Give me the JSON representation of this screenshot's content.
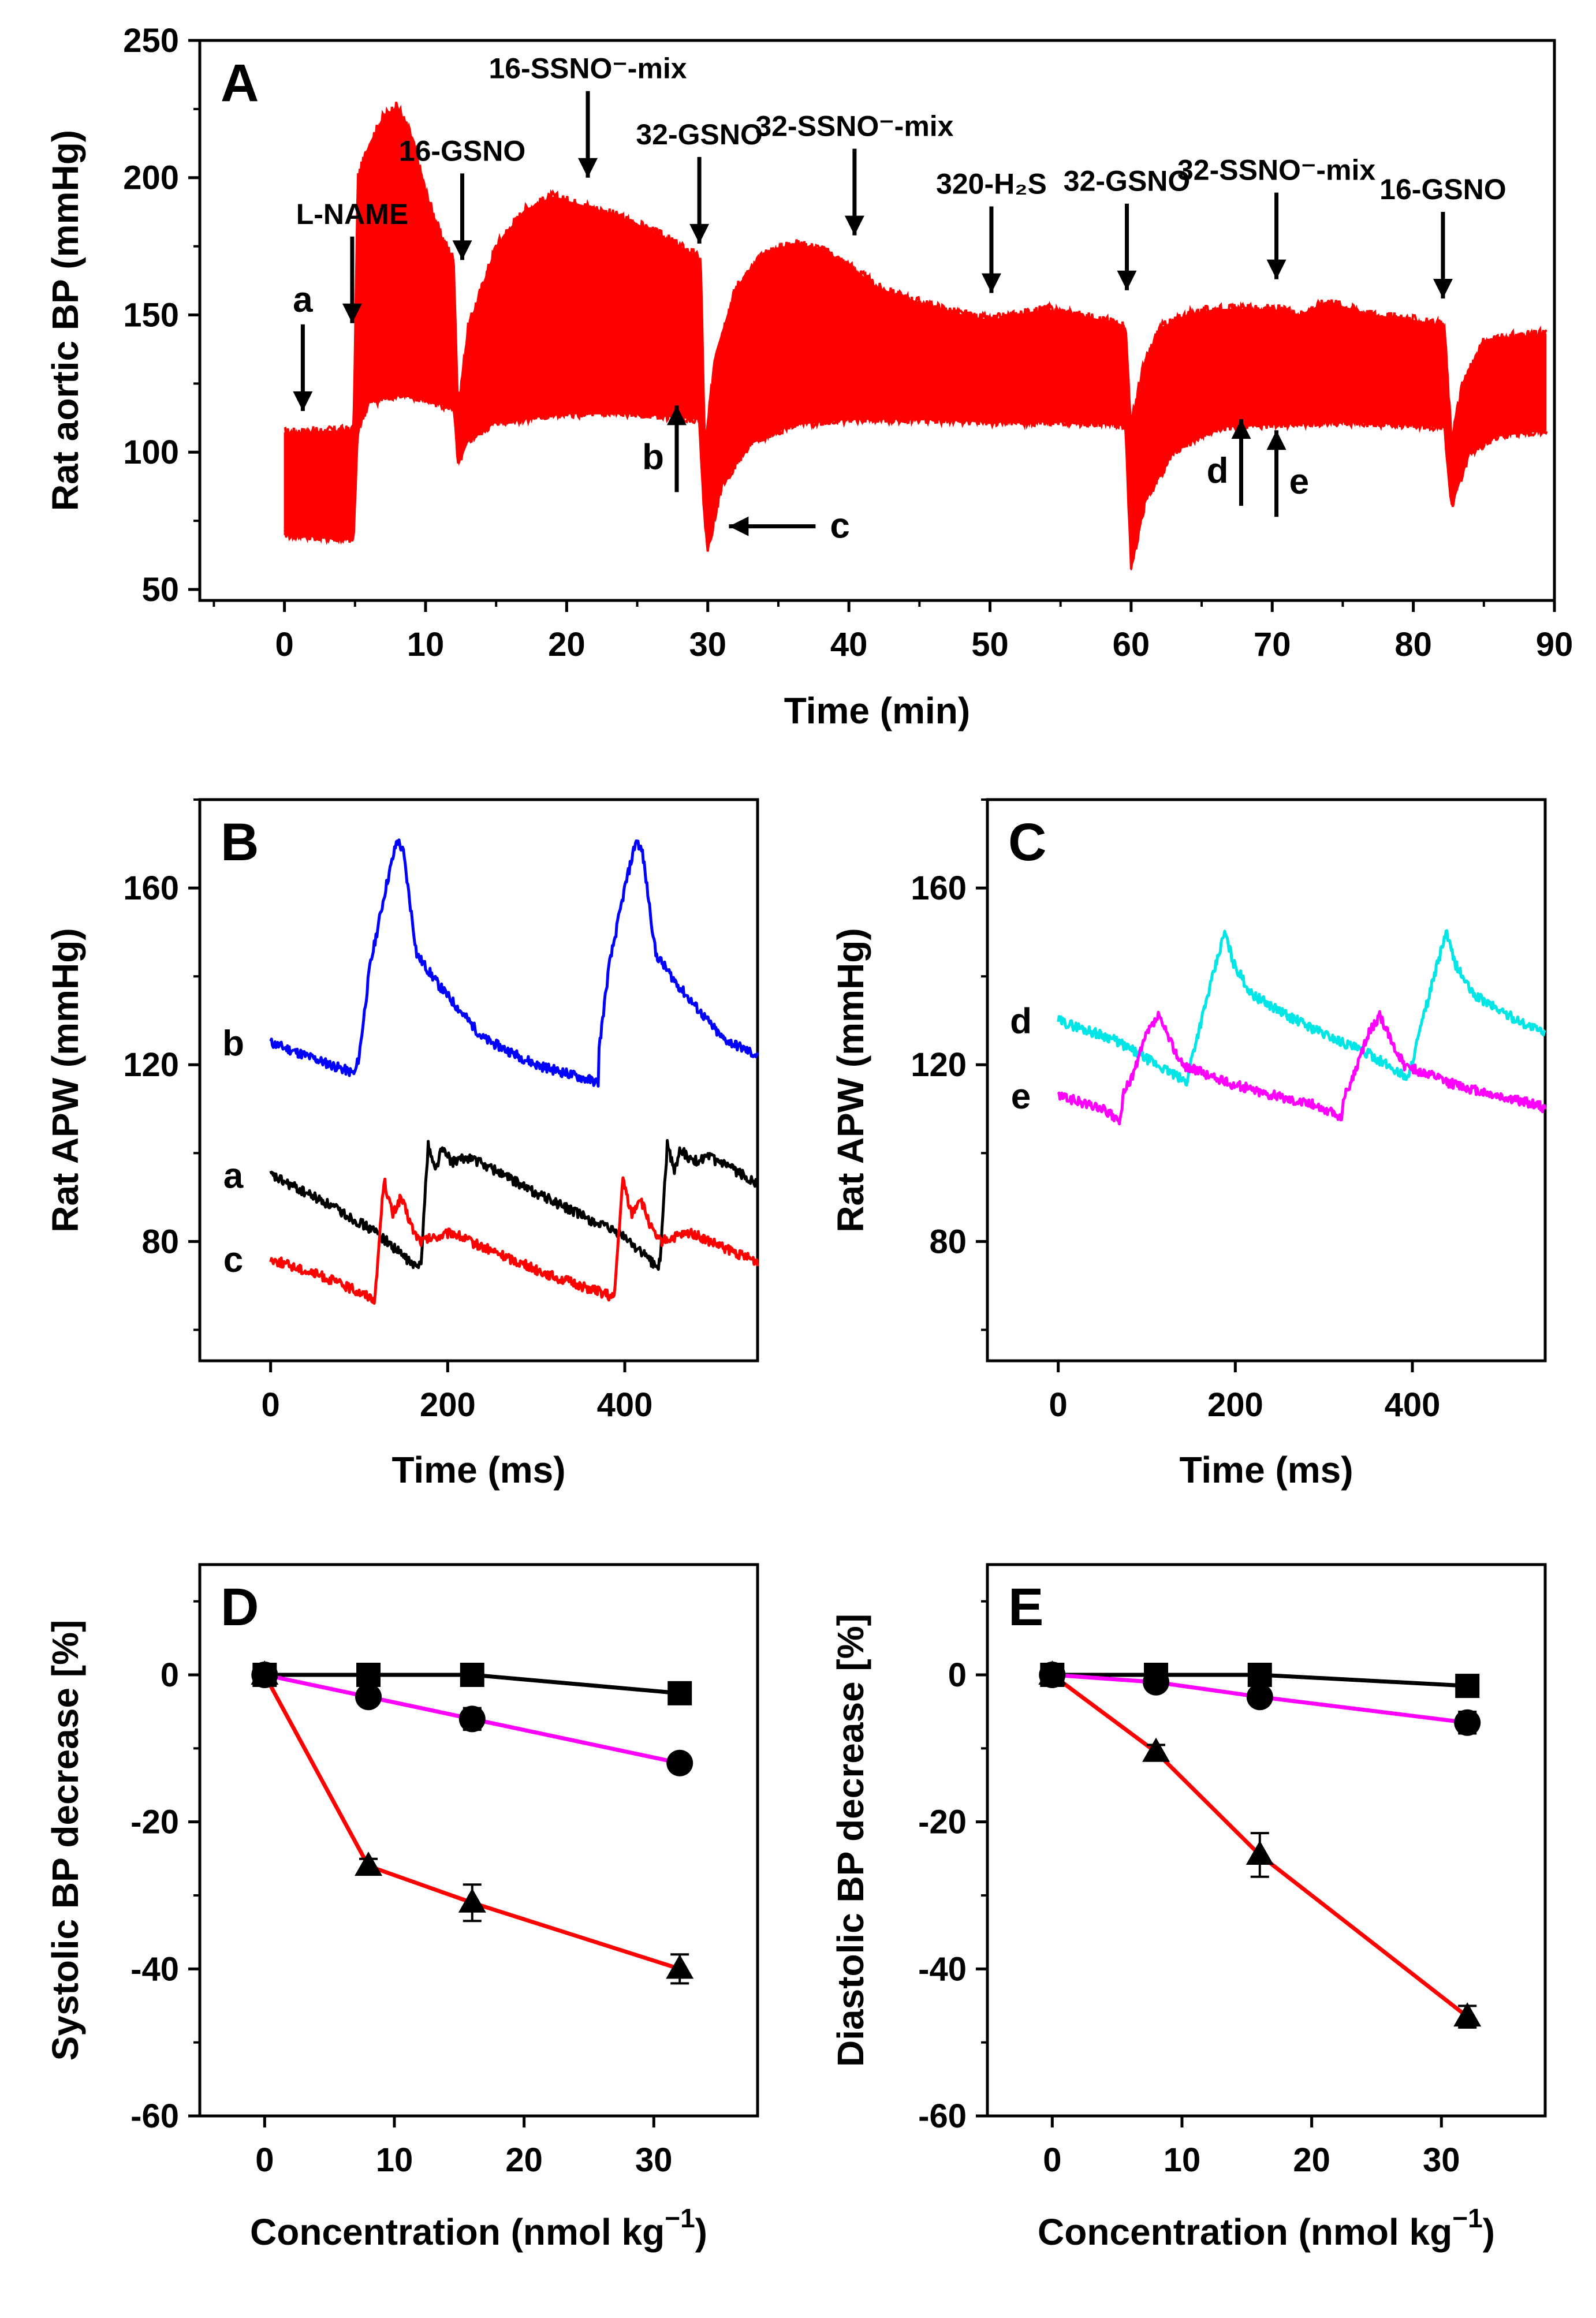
{
  "chart_data": [
    {
      "id": "A",
      "panel_label": "A",
      "type": "line",
      "xlabel": "Time (min)",
      "ylabel": "Rat aortic BP (mmHg)",
      "xlim": [
        -6,
        90
      ],
      "ylim": [
        46,
        250
      ],
      "xticks": [
        0,
        10,
        20,
        30,
        40,
        50,
        60,
        70,
        80,
        90
      ],
      "yticks": [
        50,
        100,
        150,
        200,
        250
      ],
      "color": "#ff0000",
      "series": [
        {
          "name": "systolic",
          "x": [
            0,
            4.9,
            5.2,
            6,
            7,
            8,
            9,
            10,
            11,
            12,
            12.3,
            13,
            15,
            17,
            19,
            21,
            23,
            25,
            27,
            29,
            29.5,
            29.8,
            30.5,
            32,
            34,
            36,
            38,
            40,
            42,
            44,
            46,
            48,
            50,
            52,
            54,
            56,
            58,
            59.6,
            60,
            60.8,
            62,
            64,
            66,
            68,
            70,
            72,
            74,
            75,
            77,
            80,
            82.2,
            82.7,
            83.5,
            85,
            87,
            89.5
          ],
          "y": [
            107,
            108,
            200,
            212,
            222,
            226,
            215,
            195,
            180,
            170,
            115,
            145,
            175,
            188,
            193,
            190,
            187,
            183,
            178,
            172,
            170,
            100,
            135,
            160,
            172,
            176,
            174,
            168,
            160,
            156,
            153,
            150,
            148,
            150,
            152,
            150,
            148,
            146,
            110,
            130,
            145,
            150,
            152,
            152,
            152,
            150,
            155,
            153,
            150,
            148,
            146,
            105,
            125,
            140,
            142,
            143
          ]
        },
        {
          "name": "diastolic",
          "x": [
            0,
            4.9,
            5.2,
            6,
            8,
            10,
            12,
            12.3,
            13,
            15,
            20,
            25,
            29.4,
            29.7,
            30,
            31,
            33,
            36,
            40,
            45,
            50,
            55,
            59.6,
            60,
            61,
            63,
            66,
            70,
            75,
            80,
            82.2,
            82.7,
            84,
            86,
            89.5
          ],
          "y": [
            70,
            68,
            108,
            118,
            121,
            119,
            116,
            95,
            104,
            111,
            114,
            114,
            112,
            80,
            64,
            88,
            103,
            110,
            112,
            112,
            111,
            111,
            110,
            57,
            82,
            100,
            109,
            110,
            111,
            110,
            109,
            80,
            100,
            106,
            108
          ]
        }
      ],
      "annotations": [
        {
          "text": "a",
          "x": 1.3,
          "y_tip": 115,
          "direction": "down"
        },
        {
          "text": "L-NAME",
          "x": 4.8,
          "y_tip": 147,
          "direction": "down"
        },
        {
          "text": "16-GSNO",
          "x": 12.6,
          "y_tip": 170,
          "direction": "down"
        },
        {
          "text": "16-SSNO⁻-mix",
          "x": 21.5,
          "y_tip": 200,
          "direction": "down"
        },
        {
          "text": "32-GSNO",
          "x": 29.4,
          "y_tip": 176,
          "direction": "down"
        },
        {
          "text": "32-SSNO⁻-mix",
          "x": 40.4,
          "y_tip": 179,
          "direction": "down"
        },
        {
          "text": "320-H₂S",
          "x": 50.1,
          "y_tip": 158,
          "direction": "down"
        },
        {
          "text": "32-GSNO",
          "x": 59.7,
          "y_tip": 159,
          "direction": "down"
        },
        {
          "text": "32-SSNO⁻-mix",
          "x": 70.3,
          "y_tip": 163,
          "direction": "down"
        },
        {
          "text": "16-GSNO",
          "x": 82.1,
          "y_tip": 156,
          "direction": "down"
        },
        {
          "text": "b",
          "x": 27.8,
          "y_tip": 117,
          "direction": "up"
        },
        {
          "text": "c",
          "x": 31.5,
          "y_tip": 73,
          "direction": "left"
        },
        {
          "text": "d",
          "x": 67.8,
          "y_tip": 112,
          "direction": "up"
        },
        {
          "text": "e",
          "x": 70.3,
          "y_tip": 108,
          "direction": "up"
        }
      ]
    },
    {
      "id": "B",
      "panel_label": "B",
      "type": "line",
      "xlabel": "Time (ms)",
      "ylabel": "Rat APW (mmHg)",
      "xlim": [
        -80,
        550
      ],
      "ylim": [
        53,
        180
      ],
      "xticks": [
        0,
        200,
        400
      ],
      "yticks": [
        80,
        120,
        160
      ],
      "period_ms": 270,
      "series": [
        {
          "name": "b",
          "label": "b",
          "color": "#0000ff",
          "points": [
            [
              0,
              125
            ],
            [
              95,
              118
            ],
            [
              100,
              122
            ],
            [
              112,
              142
            ],
            [
              130,
              160
            ],
            [
              143,
              171
            ],
            [
              150,
              168
            ],
            [
              165,
              145
            ],
            [
              190,
              138
            ],
            [
              240,
              126
            ],
            [
              300,
              120
            ],
            [
              370,
              116
            ]
          ]
        },
        {
          "name": "a",
          "label": "a",
          "color": "#000000",
          "points": [
            [
              0,
              95
            ],
            [
              60,
              89
            ],
            [
              120,
              82
            ],
            [
              165,
              74
            ],
            [
              170,
              76
            ],
            [
              178,
              102
            ],
            [
              186,
              96
            ],
            [
              193,
              101
            ],
            [
              205,
              98
            ],
            [
              225,
              99
            ],
            [
              255,
              96
            ],
            [
              290,
              92
            ],
            [
              340,
              87
            ],
            [
              400,
              81
            ],
            [
              438,
              74
            ]
          ]
        },
        {
          "name": "c",
          "label": "c",
          "color": "#ff0000",
          "points": [
            [
              0,
              76
            ],
            [
              60,
              72
            ],
            [
              118,
              67
            ],
            [
              124,
              84
            ],
            [
              128,
              94
            ],
            [
              138,
              86
            ],
            [
              147,
              90
            ],
            [
              162,
              82
            ],
            [
              170,
              80
            ],
            [
              205,
              82
            ],
            [
              225,
              80
            ],
            [
              260,
              77
            ],
            [
              320,
              72
            ],
            [
              380,
              68
            ]
          ]
        }
      ]
    },
    {
      "id": "C",
      "panel_label": "C",
      "type": "line",
      "xlabel": "Time (ms)",
      "ylabel": "Rat APW (mmHg)",
      "xlim": [
        -80,
        550
      ],
      "ylim": [
        53,
        180
      ],
      "xticks": [
        0,
        200,
        400
      ],
      "yticks": [
        80,
        120,
        160
      ],
      "period_ms": 250,
      "series": [
        {
          "name": "d",
          "label": "d",
          "color": "#00e5e5",
          "points": [
            [
              0,
              130
            ],
            [
              60,
              126
            ],
            [
              120,
              119
            ],
            [
              145,
              116
            ],
            [
              150,
              121
            ],
            [
              172,
              138
            ],
            [
              188,
              150
            ],
            [
              198,
              143
            ],
            [
              218,
              136
            ],
            [
              260,
              131
            ],
            [
              300,
              127
            ],
            [
              355,
              122
            ],
            [
              395,
              117
            ]
          ]
        },
        {
          "name": "e",
          "label": "e",
          "color": "#ff00ff",
          "points": [
            [
              0,
              113
            ],
            [
              50,
              110
            ],
            [
              70,
              107
            ],
            [
              73,
              113
            ],
            [
              85,
              118
            ],
            [
              100,
              127
            ],
            [
              113,
              131
            ],
            [
              125,
              126
            ],
            [
              140,
              120
            ],
            [
              190,
              116
            ],
            [
              245,
              113
            ],
            [
              290,
              111
            ],
            [
              320,
              108
            ]
          ]
        }
      ]
    },
    {
      "id": "D",
      "panel_label": "D",
      "type": "line",
      "xlabel": "Concentration (nmol kg",
      "xlabel_sup": "−1",
      "xlabel_close": ")",
      "ylabel": "Systolic BP decrease [%]",
      "xlim": [
        -5,
        38
      ],
      "ylim": [
        -60,
        15
      ],
      "xticks": [
        0,
        10,
        20,
        30
      ],
      "yticks": [
        -60,
        -40,
        -20,
        0
      ],
      "series": [
        {
          "name": "squares",
          "marker": "square",
          "color": "#000000",
          "x": [
            0,
            8,
            16,
            32
          ],
          "y": [
            0,
            0,
            0,
            -2.5
          ],
          "err": [
            0,
            0,
            0,
            0
          ]
        },
        {
          "name": "circles",
          "marker": "circle",
          "color": "#ff00ff",
          "x": [
            0,
            8,
            16,
            32
          ],
          "y": [
            0,
            -3,
            -6,
            -12
          ],
          "err": [
            0,
            0,
            1,
            0
          ]
        },
        {
          "name": "triangles",
          "marker": "triangle",
          "color": "#ff0000",
          "x": [
            0,
            8,
            16,
            32
          ],
          "y": [
            0,
            -26,
            -31,
            -40
          ],
          "err": [
            0,
            0.5,
            2,
            1.5
          ]
        }
      ]
    },
    {
      "id": "E",
      "panel_label": "E",
      "type": "line",
      "xlabel": "Concentration (nmol kg",
      "xlabel_sup": "−1",
      "xlabel_close": ")",
      "ylabel": "Diastolic BP decrease [%]",
      "xlim": [
        -5,
        38
      ],
      "ylim": [
        -60,
        15
      ],
      "xticks": [
        0,
        10,
        20,
        30
      ],
      "yticks": [
        -60,
        -40,
        -20,
        0
      ],
      "series": [
        {
          "name": "squares",
          "marker": "square",
          "color": "#000000",
          "x": [
            0,
            8,
            16,
            32
          ],
          "y": [
            0,
            0,
            0,
            -1.5
          ],
          "err": [
            0,
            0,
            0,
            0
          ]
        },
        {
          "name": "circles",
          "marker": "circle",
          "color": "#ff00ff",
          "x": [
            0,
            8,
            16,
            32
          ],
          "y": [
            0,
            -1,
            -3,
            -6.5
          ],
          "err": [
            0,
            0,
            0,
            1
          ]
        },
        {
          "name": "triangles",
          "marker": "triangle",
          "color": "#ff0000",
          "x": [
            0,
            8,
            16,
            32
          ],
          "y": [
            0,
            -10.5,
            -24.5,
            -46.5
          ],
          "err": [
            0,
            0.5,
            2.5,
            1
          ]
        }
      ]
    }
  ]
}
